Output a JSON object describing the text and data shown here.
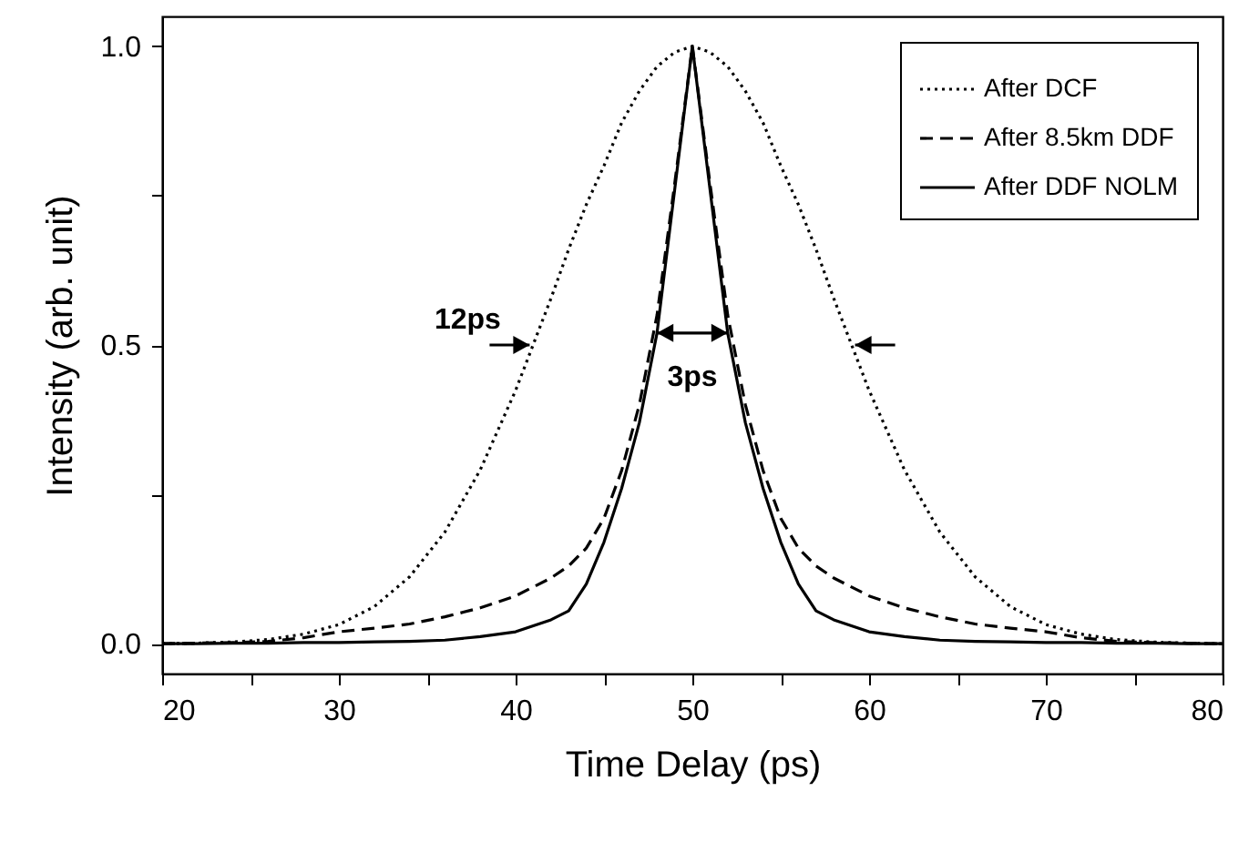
{
  "chart_data": {
    "type": "line",
    "xlabel": "Time Delay (ps)",
    "ylabel": "Intensity (arb. unit)",
    "x": [
      20,
      22,
      24,
      26,
      28,
      30,
      32,
      34,
      36,
      38,
      40,
      42,
      43,
      44,
      45,
      46,
      47,
      48,
      49,
      50,
      51,
      52,
      53,
      54,
      55,
      56,
      57,
      58,
      60,
      62,
      64,
      66,
      68,
      70,
      72,
      74,
      76,
      78,
      80
    ],
    "series": [
      {
        "name": "After DCF",
        "color": "#000000",
        "line_style": "dotted",
        "values": [
          0.0,
          0.001,
          0.003,
          0.007,
          0.016,
          0.032,
          0.062,
          0.112,
          0.187,
          0.291,
          0.424,
          0.578,
          0.66,
          0.735,
          0.8,
          0.872,
          0.925,
          0.966,
          0.99,
          1.0,
          0.99,
          0.966,
          0.925,
          0.872,
          0.8,
          0.735,
          0.66,
          0.578,
          0.424,
          0.291,
          0.187,
          0.112,
          0.062,
          0.032,
          0.016,
          0.007,
          0.003,
          0.001,
          0.0
        ]
      },
      {
        "name": "After 8.5km DDF",
        "color": "#000000",
        "line_style": "dashed",
        "values": [
          0.0,
          0.001,
          0.002,
          0.004,
          0.01,
          0.02,
          0.026,
          0.033,
          0.045,
          0.06,
          0.08,
          0.11,
          0.13,
          0.16,
          0.21,
          0.29,
          0.4,
          0.55,
          0.77,
          1.0,
          0.77,
          0.55,
          0.4,
          0.29,
          0.21,
          0.16,
          0.13,
          0.11,
          0.08,
          0.06,
          0.045,
          0.033,
          0.026,
          0.02,
          0.01,
          0.004,
          0.002,
          0.001,
          0.0
        ]
      },
      {
        "name": "After DDF NOLM",
        "color": "#000000",
        "line_style": "solid",
        "values": [
          0.0,
          0.0,
          0.001,
          0.001,
          0.002,
          0.002,
          0.003,
          0.004,
          0.006,
          0.012,
          0.02,
          0.04,
          0.055,
          0.1,
          0.17,
          0.26,
          0.37,
          0.52,
          0.76,
          1.0,
          0.76,
          0.52,
          0.37,
          0.26,
          0.17,
          0.1,
          0.055,
          0.04,
          0.02,
          0.012,
          0.006,
          0.004,
          0.003,
          0.002,
          0.002,
          0.001,
          0.001,
          0.0,
          0.0
        ]
      }
    ],
    "xlim": [
      20,
      80
    ],
    "xticks": [
      20,
      {
        "value": 25,
        "label": null
      },
      30,
      {
        "value": 35,
        "label": null
      },
      40,
      {
        "value": 45,
        "label": null
      },
      50,
      {
        "value": 55,
        "label": null
      },
      60,
      {
        "value": 65,
        "label": null
      },
      70,
      {
        "value": 75,
        "label": null
      },
      80
    ],
    "ylim": [
      -0.05,
      1.05
    ],
    "yticks": [
      {
        "value": 0,
        "label": "0.0"
      },
      {
        "value": 0.25,
        "label": null
      },
      {
        "value": 0.5,
        "label": "0.5"
      },
      {
        "value": 0.75,
        "label": null
      },
      {
        "value": 1,
        "label": "1.0"
      }
    ],
    "annotations": [
      {
        "text": "12ps",
        "x": 41,
        "y": 0.5
      },
      {
        "text": "3ps",
        "x": 48,
        "y": 0.52
      }
    ],
    "legend": "top right",
    "grid": false,
    "marker": "none"
  }
}
